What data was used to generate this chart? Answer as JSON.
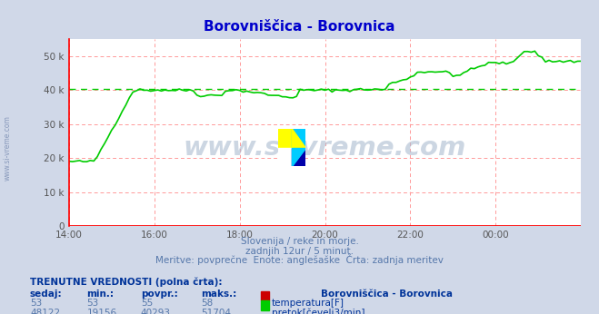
{
  "title": "Borovniščica - Borovnica",
  "bg_color": "#d0d8e8",
  "plot_bg_color": "#ffffff",
  "grid_color": "#ff9999",
  "avg_line_color": "#00cc00",
  "avg_line_value": 40293,
  "temp_line_color": "#cc0000",
  "flow_line_color": "#00cc00",
  "ylim": [
    0,
    55000
  ],
  "yticks": [
    0,
    10000,
    20000,
    30000,
    40000,
    50000
  ],
  "ytick_labels": [
    "0",
    "10 k",
    "20 k",
    "30 k",
    "40 k",
    "50 k"
  ],
  "tick_positions": [
    0,
    24,
    48,
    72,
    96,
    120,
    144
  ],
  "xlabel_times": [
    "14:00",
    "16:00",
    "18:00",
    "20:00",
    "22:00",
    "00:00",
    ""
  ],
  "subtitle1": "Slovenija / reke in morje.",
  "subtitle2": "zadnjih 12ur / 5 minut.",
  "subtitle3": "Meritve: povprečne  Enote: anglešaške  Črta: zadnja meritev",
  "legend_title": "TRENUTNE VREDNOSTI (polna črta):",
  "legend_headers": [
    "sedaj:",
    "min.:",
    "povpr.:",
    "maks.:"
  ],
  "row1": [
    "53",
    "53",
    "55",
    "58"
  ],
  "row1_label": "temperatura[F]",
  "row1_color": "#cc0000",
  "row2": [
    "48122",
    "19156",
    "40293",
    "51704"
  ],
  "row2_label": "pretok[čevelj3/min]",
  "row2_color": "#00cc00",
  "station_label": "Borovniščica - Borovnica",
  "watermark": "www.si-vreme.com",
  "side_watermark": "www.si-vreme.com"
}
